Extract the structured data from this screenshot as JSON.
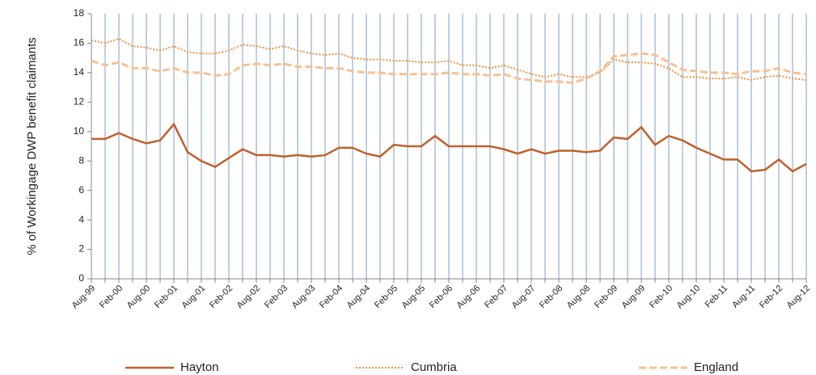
{
  "chart_data": {
    "type": "line",
    "y_label": "% of Workingage DWP benefit claimants",
    "categories": [
      "Aug-99",
      null,
      "Feb-00",
      null,
      "Aug-00",
      null,
      "Feb-01",
      null,
      "Aug-01",
      null,
      "Feb-02",
      null,
      "Aug-02",
      null,
      "Feb-03",
      null,
      "Aug-03",
      null,
      "Feb-04",
      null,
      "Aug-04",
      null,
      "Feb-05",
      null,
      "Aug-05",
      null,
      "Feb-06",
      null,
      "Aug-06",
      null,
      "Feb-07",
      null,
      "Aug-07",
      null,
      "Feb-08",
      null,
      "Aug-08",
      null,
      "Feb-09",
      null,
      "Aug-09",
      null,
      "Feb-10",
      null,
      "Aug-10",
      null,
      "Feb-11",
      null,
      "Aug-11",
      null,
      "Feb-12",
      null,
      "Aug-12"
    ],
    "series": [
      {
        "name": "Hayton",
        "color": "#c0602a",
        "dash": "solid",
        "values": [
          9.5,
          9.5,
          9.9,
          9.5,
          9.2,
          9.4,
          10.5,
          8.6,
          8.0,
          7.6,
          8.2,
          8.8,
          8.4,
          8.4,
          8.3,
          8.4,
          8.3,
          8.4,
          8.9,
          8.9,
          8.5,
          8.3,
          9.1,
          9.0,
          9.0,
          9.7,
          9.0,
          9.0,
          9.0,
          9.0,
          8.8,
          8.5,
          8.8,
          8.5,
          8.7,
          8.7,
          8.6,
          8.7,
          9.6,
          9.5,
          10.3,
          9.1,
          9.7,
          9.4,
          8.9,
          8.5,
          8.1,
          8.1,
          7.3,
          7.4,
          8.1,
          7.3,
          7.8
        ]
      },
      {
        "name": "Cumbria",
        "color": "#f0913a",
        "dash": "dotted",
        "values": [
          16.2,
          16.0,
          16.3,
          15.8,
          15.7,
          15.5,
          15.8,
          15.4,
          15.3,
          15.3,
          15.5,
          15.9,
          15.8,
          15.6,
          15.8,
          15.5,
          15.3,
          15.2,
          15.3,
          15.0,
          14.9,
          14.9,
          14.8,
          14.8,
          14.7,
          14.7,
          14.8,
          14.5,
          14.5,
          14.3,
          14.5,
          14.2,
          13.9,
          13.7,
          13.9,
          13.7,
          13.7,
          14.0,
          14.9,
          14.7,
          14.7,
          14.6,
          14.3,
          13.7,
          13.7,
          13.6,
          13.6,
          13.7,
          13.5,
          13.7,
          13.8,
          13.6,
          13.5
        ]
      },
      {
        "name": "England",
        "color": "#f8c090",
        "dash": "dashed",
        "values": [
          14.8,
          14.5,
          14.7,
          14.3,
          14.3,
          14.1,
          14.3,
          14.0,
          14.0,
          13.8,
          13.9,
          14.5,
          14.6,
          14.5,
          14.6,
          14.4,
          14.4,
          14.3,
          14.3,
          14.1,
          14.0,
          14.0,
          13.9,
          13.9,
          13.9,
          13.9,
          14.0,
          13.9,
          13.9,
          13.8,
          13.9,
          13.6,
          13.5,
          13.4,
          13.4,
          13.3,
          13.6,
          14.1,
          15.1,
          15.2,
          15.3,
          15.2,
          14.7,
          14.2,
          14.1,
          14.0,
          14.0,
          13.9,
          14.1,
          14.1,
          14.3,
          14.0,
          13.9
        ]
      }
    ],
    "ylim": [
      0,
      18
    ],
    "yticks": [
      0,
      2,
      4,
      6,
      8,
      10,
      12,
      14,
      16,
      18
    ],
    "grid": "x",
    "grid_color": "#a9bfd8",
    "legend": "bottom"
  }
}
